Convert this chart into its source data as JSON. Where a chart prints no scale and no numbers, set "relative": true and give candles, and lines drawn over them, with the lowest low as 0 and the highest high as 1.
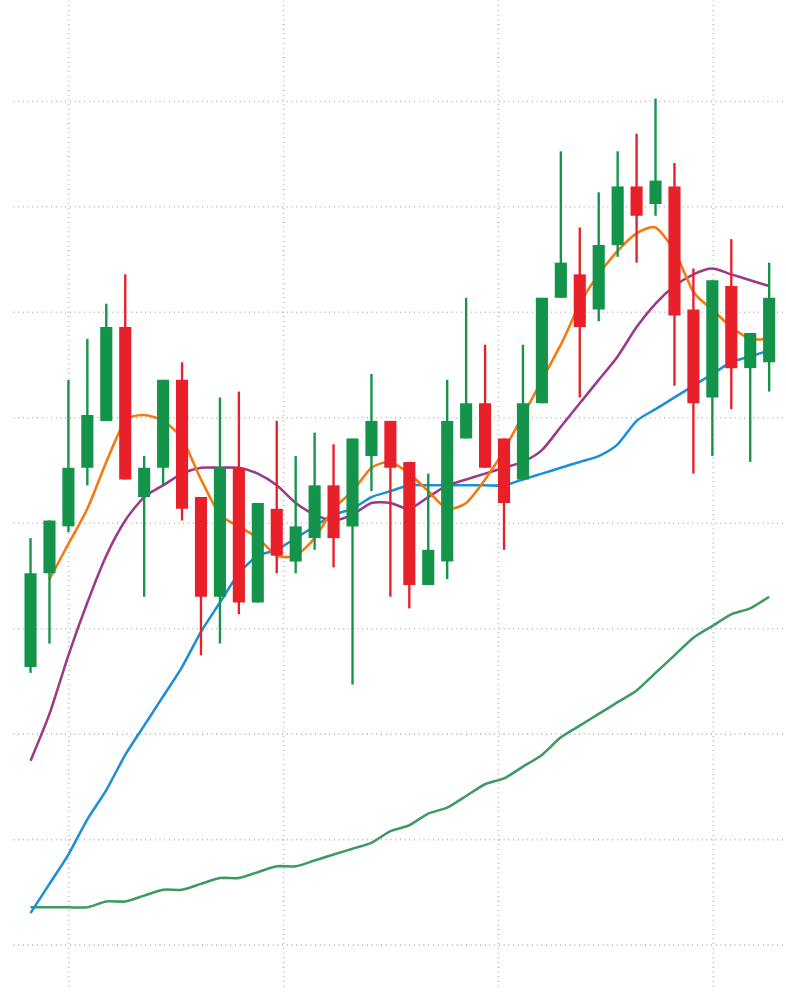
{
  "chart_data": {
    "type": "candlestick",
    "relative": true,
    "grid": true,
    "categories": [
      null,
      null,
      null,
      null,
      null,
      null,
      null,
      null,
      null,
      null,
      null,
      null,
      null,
      null,
      null,
      null,
      null,
      null,
      null,
      null,
      null,
      null,
      null,
      null,
      null,
      null,
      null,
      null,
      null,
      null,
      null,
      null,
      null,
      null,
      null,
      null,
      null,
      null,
      null,
      null
    ],
    "ohlc": [
      [
        0.03,
        0.25,
        0.02,
        0.19
      ],
      [
        0.19,
        0.28,
        0.07,
        0.28
      ],
      [
        0.27,
        0.52,
        0.26,
        0.37
      ],
      [
        0.37,
        0.59,
        0.34,
        0.46
      ],
      [
        0.45,
        0.65,
        0.45,
        0.61
      ],
      [
        0.61,
        0.7,
        0.35,
        0.35
      ],
      [
        0.32,
        0.39,
        0.15,
        0.37
      ],
      [
        0.37,
        0.52,
        0.34,
        0.52
      ],
      [
        0.52,
        0.55,
        0.28,
        0.3
      ],
      [
        0.32,
        0.32,
        0.05,
        0.15
      ],
      [
        0.15,
        0.49,
        0.07,
        0.37
      ],
      [
        0.37,
        0.5,
        0.12,
        0.14
      ],
      [
        0.14,
        0.31,
        0.14,
        0.31
      ],
      [
        0.3,
        0.45,
        0.19,
        0.22
      ],
      [
        0.21,
        0.39,
        0.19,
        0.27
      ],
      [
        0.25,
        0.43,
        0.23,
        0.34
      ],
      [
        0.34,
        0.41,
        0.2,
        0.25
      ],
      [
        0.27,
        0.42,
        0.0,
        0.42
      ],
      [
        0.39,
        0.53,
        0.33,
        0.45
      ],
      [
        0.45,
        0.45,
        0.15,
        0.37
      ],
      [
        0.38,
        0.38,
        0.13,
        0.17
      ],
      [
        0.17,
        0.36,
        0.17,
        0.23
      ],
      [
        0.21,
        0.52,
        0.18,
        0.45
      ],
      [
        0.42,
        0.66,
        0.42,
        0.48
      ],
      [
        0.48,
        0.58,
        0.37,
        0.37
      ],
      [
        0.42,
        0.42,
        0.23,
        0.31
      ],
      [
        0.35,
        0.58,
        0.35,
        0.48
      ],
      [
        0.48,
        0.66,
        0.48,
        0.66
      ],
      [
        0.66,
        0.91,
        0.66,
        0.72
      ],
      [
        0.7,
        0.78,
        0.49,
        0.61
      ],
      [
        0.64,
        0.84,
        0.62,
        0.75
      ],
      [
        0.75,
        0.91,
        0.73,
        0.85
      ],
      [
        0.85,
        0.94,
        0.72,
        0.8
      ],
      [
        0.82,
        1.0,
        0.8,
        0.86
      ],
      [
        0.85,
        0.89,
        0.51,
        0.63
      ],
      [
        0.64,
        0.71,
        0.36,
        0.48
      ],
      [
        0.49,
        0.69,
        0.39,
        0.69
      ],
      [
        0.68,
        0.76,
        0.47,
        0.54
      ],
      [
        0.54,
        0.6,
        0.38,
        0.6
      ],
      [
        0.55,
        0.72,
        0.5,
        0.66
      ]
    ],
    "colors": [
      "#14944a",
      "#14944a",
      "#14944a",
      "#14944a",
      "#14944a",
      "#e8202a",
      "#14944a",
      "#14944a",
      "#e8202a",
      "#e8202a",
      "#14944a",
      "#e8202a",
      "#14944a",
      "#e8202a",
      "#14944a",
      "#14944a",
      "#e8202a",
      "#14944a",
      "#14944a",
      "#e8202a",
      "#e8202a",
      "#14944a",
      "#14944a",
      "#14944a",
      "#e8202a",
      "#e8202a",
      "#14944a",
      "#14944a",
      "#14944a",
      "#e8202a",
      "#14944a",
      "#14944a",
      "#e8202a",
      "#14944a",
      "#e8202a",
      "#e8202a",
      "#14944a",
      "#e8202a",
      "#14944a",
      "#14944a"
    ],
    "series": [
      {
        "type": "line",
        "color": "#3d9a62",
        "values": [
          -0.38,
          -0.38,
          -0.38,
          -0.38,
          -0.37,
          -0.37,
          -0.36,
          -0.35,
          -0.35,
          -0.34,
          -0.33,
          -0.33,
          -0.32,
          -0.31,
          -0.31,
          -0.3,
          -0.29,
          -0.28,
          -0.27,
          -0.25,
          -0.24,
          -0.22,
          -0.21,
          -0.19,
          -0.17,
          -0.16,
          -0.14,
          -0.12,
          -0.09,
          -0.07,
          -0.05,
          -0.03,
          -0.01,
          0.02,
          0.05,
          0.08,
          0.1,
          0.12,
          0.13,
          0.15
        ]
      },
      {
        "type": "line",
        "color": "#1c8fd6",
        "values": [
          -0.39,
          -0.34,
          -0.29,
          -0.23,
          -0.18,
          -0.12,
          -0.07,
          -0.02,
          0.03,
          0.09,
          0.14,
          0.19,
          0.22,
          0.23,
          0.25,
          0.27,
          0.29,
          0.3,
          0.32,
          0.33,
          0.34,
          0.34,
          0.34,
          0.34,
          0.34,
          0.34,
          0.35,
          0.36,
          0.37,
          0.38,
          0.39,
          0.41,
          0.45,
          0.47,
          0.49,
          0.51,
          0.53,
          0.55,
          0.56,
          0.57
        ]
      },
      {
        "type": "line",
        "color": "#9b3a8a",
        "values": [
          -0.13,
          -0.05,
          0.05,
          0.14,
          0.22,
          0.28,
          0.32,
          0.34,
          0.36,
          0.37,
          0.37,
          0.37,
          0.36,
          0.34,
          0.31,
          0.29,
          0.28,
          0.29,
          0.31,
          0.31,
          0.3,
          0.32,
          0.34,
          0.35,
          0.36,
          0.37,
          0.38,
          0.4,
          0.44,
          0.48,
          0.52,
          0.56,
          0.61,
          0.65,
          0.68,
          0.7,
          0.71,
          0.7,
          0.69,
          0.68
        ]
      },
      {
        "type": "line",
        "color": "#f7780f",
        "values": [
          null,
          0.18,
          0.24,
          0.3,
          0.38,
          0.45,
          0.46,
          0.45,
          0.42,
          0.35,
          0.29,
          0.27,
          0.25,
          0.22,
          0.22,
          0.25,
          0.3,
          0.33,
          0.37,
          0.38,
          0.36,
          0.33,
          0.3,
          0.31,
          0.35,
          0.4,
          null,
          null,
          0.58,
          0.65,
          0.7,
          0.74,
          0.77,
          0.78,
          0.74,
          0.67,
          0.64,
          0.61,
          0.59,
          0.59
        ]
      }
    ]
  }
}
